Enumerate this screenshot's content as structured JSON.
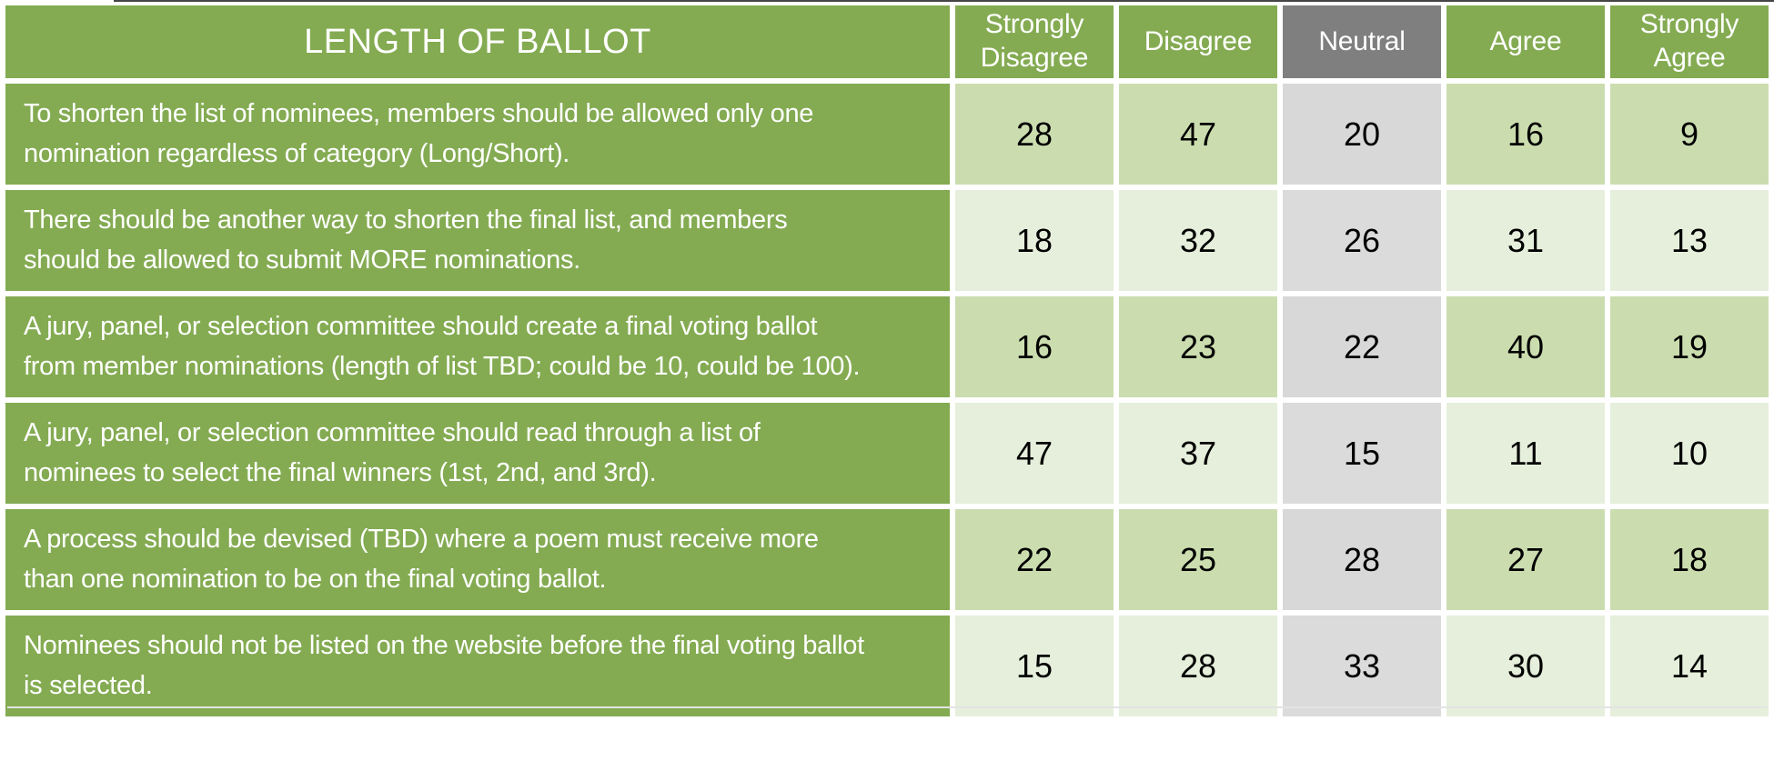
{
  "chart_data": {
    "type": "table",
    "title": "LENGTH OF BALLOT",
    "columns": [
      "Strongly Disagree",
      "Disagree",
      "Neutral",
      "Agree",
      "Strongly Agree"
    ],
    "rows": [
      {
        "statement": "To shorten the list of nominees, members should be allowed only one\nnomination regardless of category (Long/Short).",
        "values": [
          28,
          47,
          20,
          16,
          9
        ]
      },
      {
        "statement": "There should be another way to shorten the final list, and members\nshould be allowed to submit MORE nominations.",
        "values": [
          18,
          32,
          26,
          31,
          13
        ]
      },
      {
        "statement": "A jury, panel, or selection committee should create a final voting ballot\nfrom member nominations (length of list TBD; could be 10, could be 100).",
        "values": [
          16,
          23,
          22,
          40,
          19
        ]
      },
      {
        "statement": "A jury, panel, or selection committee should read through a list of\nnominees to select the final winners (1st, 2nd, and 3rd).",
        "values": [
          47,
          37,
          15,
          11,
          10
        ]
      },
      {
        "statement": "A process should be devised (TBD) where a poem must receive more\nthan one nomination to be on the final voting ballot.",
        "values": [
          22,
          25,
          28,
          27,
          18
        ]
      },
      {
        "statement": "Nominees should not be listed on the website before the final voting ballot\nis selected.",
        "values": [
          15,
          28,
          33,
          30,
          14
        ]
      }
    ],
    "layout_hints": {
      "banded_rows": true,
      "neutral_column_highlight": "gray",
      "header_position": "top",
      "statement_column_position": "left"
    }
  },
  "colors": {
    "header_green": "#84AB52",
    "band_green_dark": "#CBDDAF",
    "band_green_light": "#E5EFDB",
    "neutral_header_gray": "#7F7F7F",
    "neutral_cell_gray_dark": "#D8D8D8",
    "neutral_cell_gray_light": "#DBDBDB",
    "statement_text": "#FFFFFF",
    "value_text": "#000000",
    "gap_white": "#FFFFFF"
  }
}
